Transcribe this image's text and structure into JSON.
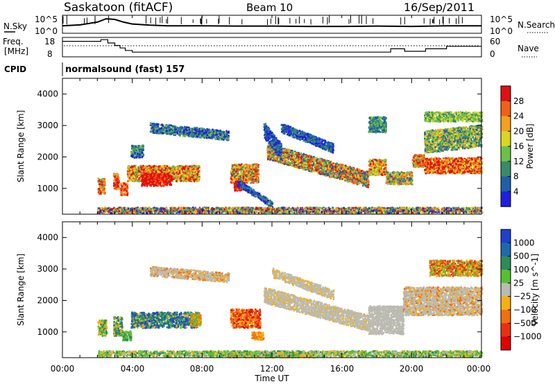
{
  "chart_data": [
    {
      "type": "line",
      "panel": "noise-panel",
      "left_label": "N.Sky",
      "right_label": "N.Search",
      "left_ticks": [
        "10^5",
        "10^0"
      ],
      "right_ticks": [
        "10^5",
        "10^0"
      ],
      "x": [
        0,
        1,
        2,
        2.5,
        3,
        3.5,
        4,
        5,
        6,
        8,
        10,
        12,
        14,
        16,
        18,
        20,
        22,
        24
      ],
      "series": [
        {
          "values": [
            2.0,
            2.3,
            3.2,
            4.3,
            4.1,
            3.2,
            2.6,
            2.2,
            2.0,
            2.0,
            1.9,
            1.9,
            1.8,
            1.8,
            1.9,
            1.8,
            2.0,
            2.0
          ]
        }
      ]
    },
    {
      "type": "line",
      "panel": "freq-panel",
      "left_label": "Freq.",
      "left_label_2": "[MHz]",
      "right_label": "Nave",
      "left_ticks": [
        "18",
        "8"
      ],
      "right_ticks": [
        "60",
        "0"
      ],
      "x": [
        0,
        1.8,
        2.2,
        2.6,
        3.0,
        3.3,
        3.6,
        4.0,
        17.6,
        18.8,
        19.6,
        20.8,
        22.0,
        24
      ],
      "series": [
        {
          "values": [
            16.5,
            16.5,
            17.5,
            15.5,
            14.0,
            12.5,
            11.0,
            10.0,
            10.0,
            12.0,
            10.5,
            12.0,
            13.5,
            13.5
          ]
        }
      ],
      "nave_level": 35
    },
    {
      "type": "heatmap",
      "panel": "power-panel",
      "ylabel": "Slant Range [km]",
      "yticks": [
        "1000",
        "2000",
        "3000",
        "4000"
      ],
      "colorbar_label": "Power [dB]",
      "colorbar_ticks": [
        "4",
        "8",
        "12",
        "16",
        "20",
        "24",
        "28"
      ],
      "ylim": [
        180,
        4500
      ],
      "colors": [
        "#1f1fe0",
        "#1e5fa8",
        "#3a8a6a",
        "#6cbf4a",
        "#d8d820",
        "#f5a020",
        "#f06018",
        "#e01010"
      ]
    },
    {
      "type": "heatmap",
      "panel": "velocity-panel",
      "ylabel": "Slant Range [km]",
      "yticks": [
        "1000",
        "2000",
        "3000",
        "4000"
      ],
      "colorbar_label": "Velocity [m s^-1]",
      "colorbar_ticks": [
        "1000",
        "500",
        "100",
        "25",
        "−25",
        "−100",
        "−500",
        "−1000"
      ],
      "ylim": [
        180,
        4500
      ],
      "colors": [
        "#1f3fd0",
        "#1e6aa8",
        "#2e8a5a",
        "#58c030",
        "#bbbbb2",
        "#f5b010",
        "#f07010",
        "#e83010",
        "#e00000"
      ]
    }
  ],
  "header": {
    "site": "Saskatoon (fitACF)",
    "beam": "Beam 10",
    "date": "16/Sep/2011"
  },
  "cpid": {
    "label": "CPID",
    "value": "normalsound (fast) 157"
  },
  "x_axis": {
    "ticks": [
      "00:00",
      "04:00",
      "08:00",
      "12:00",
      "16:00",
      "20:00",
      "00:00"
    ],
    "label": "Time UT",
    "range": [
      0,
      24
    ]
  },
  "colors": {
    "ground_scatter": "#bbbbb2"
  }
}
